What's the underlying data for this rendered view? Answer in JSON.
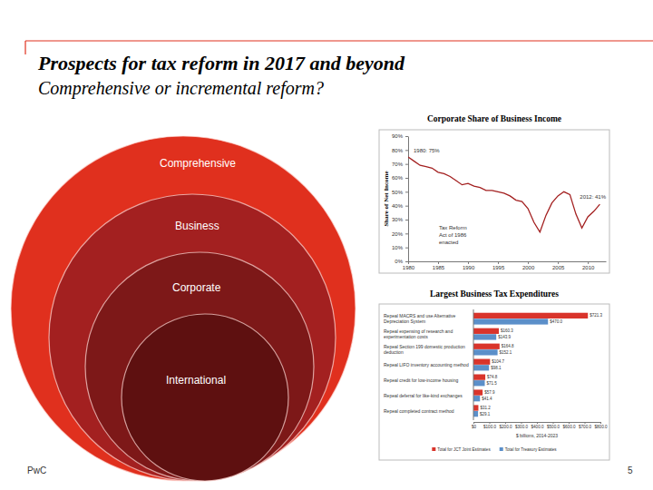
{
  "slide": {
    "title": "Prospects for tax reform in 2017 and beyond",
    "subtitle": "Comprehensive or incremental reform?",
    "footer": "PwC",
    "page": 5
  },
  "diagram": {
    "circles": [
      {
        "label": "Comprehensive",
        "color": "#e0301e"
      },
      {
        "label": "Business",
        "color": "#a32020"
      },
      {
        "label": "Corporate",
        "color": "#7d1818"
      },
      {
        "label": "International",
        "color": "#5e1010"
      }
    ]
  },
  "chart_data": [
    {
      "type": "line",
      "title": "Corporate Share of Business Income",
      "y_label": "Share of Net Income",
      "x": [
        1980,
        1981,
        1982,
        1983,
        1984,
        1985,
        1986,
        1987,
        1988,
        1989,
        1990,
        1991,
        1992,
        1993,
        1994,
        1995,
        1996,
        1997,
        1998,
        1999,
        2000,
        2001,
        2002,
        2003,
        2004,
        2005,
        2006,
        2007,
        2008,
        2009,
        2010,
        2011,
        2012
      ],
      "values": [
        75,
        72,
        69,
        68,
        67,
        64,
        63,
        61,
        58,
        55,
        56,
        54,
        53,
        51,
        51,
        50,
        49,
        47,
        44,
        43,
        38,
        28,
        21,
        33,
        42,
        47,
        50,
        48,
        34,
        24,
        32,
        36,
        41
      ],
      "color": "#a32020",
      "xlim": [
        1980,
        2013
      ],
      "xticks": [
        1980,
        1985,
        1990,
        1995,
        2000,
        2005,
        2010
      ],
      "ylim": [
        0,
        90
      ],
      "yticks": [
        {
          "value": 0,
          "label": "0%"
        },
        {
          "value": 10,
          "label": "10%"
        },
        {
          "value": 20,
          "label": "20%"
        },
        {
          "value": 30,
          "label": "30%"
        },
        {
          "value": 40,
          "label": "40%"
        },
        {
          "value": 50,
          "label": "50%"
        },
        {
          "value": 60,
          "label": "60%"
        },
        {
          "value": 70,
          "label": "70%"
        },
        {
          "value": 80,
          "label": "80%"
        },
        {
          "value": 90,
          "label": "90%"
        }
      ],
      "grid": false,
      "annotations": [
        [
          "1980: 75%"
        ],
        [
          "2012: 41%"
        ],
        [
          "Tax Reform",
          "Act of 1986",
          "enacted"
        ]
      ]
    },
    {
      "type": "bar",
      "orientation": "horizontal",
      "title": "Largest Business Tax Expenditures",
      "categories": [
        "Repeal MACRS and use Alternative Depreciation System",
        "Repeal expensing of research and experimentation costs",
        "Repeal Section 199 domestic production deduction",
        "Repeal LIFO inventory accounting method",
        "Repeal credit for low-income housing",
        "Repeal deferral for like-kind exchanges",
        "Repeal completed contract method"
      ],
      "series": [
        {
          "name": "Total for JCT Joint Estimates",
          "color": "#d9342b",
          "values": [
            721.3,
            160.3,
            164.8,
            104.7,
            74.8,
            57.9,
            31.2
          ],
          "value_labels": [
            "$721.3",
            "$160.3",
            "$164.8",
            "$104.7",
            "$74.8",
            "$57.9",
            "$31.2"
          ]
        },
        {
          "name": "Total for Treasury Estimates",
          "color": "#5b8fc9",
          "values": [
            470.0,
            143.9,
            152.1,
            98.1,
            71.5,
            41.4,
            29.1
          ],
          "value_labels": [
            "$470.0",
            "$143.9",
            "$152.1",
            "$98.1",
            "$71.5",
            "$41.4",
            "$29.1"
          ]
        }
      ],
      "xlim": [
        0,
        800
      ],
      "xticks": [
        {
          "value": 0,
          "label": "$0"
        },
        {
          "value": 100,
          "label": "$100.0"
        },
        {
          "value": 200,
          "label": "$200.0"
        },
        {
          "value": 300,
          "label": "$300.0"
        },
        {
          "value": 400,
          "label": "$400.0"
        },
        {
          "value": 500,
          "label": "$500.0"
        },
        {
          "value": 600,
          "label": "$600.0"
        },
        {
          "value": 700,
          "label": "$700.0"
        },
        {
          "value": 800,
          "label": "$800.0"
        }
      ],
      "x_label": "$ billions, 2014-2023",
      "data_labels": true,
      "legend": "bottom",
      "grid": false
    }
  ]
}
